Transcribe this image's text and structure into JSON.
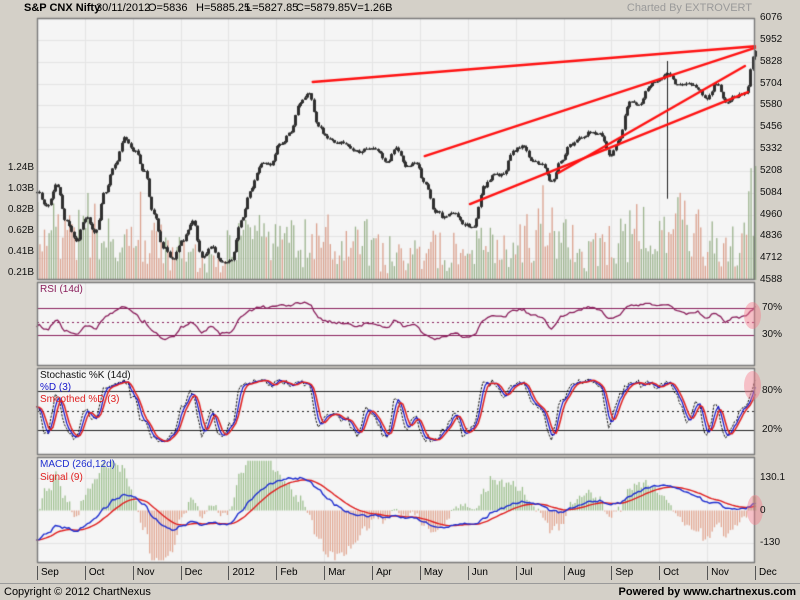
{
  "header": {
    "title": "S&P CNX Nifty",
    "date": "30/11/2012",
    "open": "O=5836",
    "high": "H=5885.25",
    "low": "L=5827.85",
    "close": "C=5879.85",
    "volume": "V=1.26B",
    "charted_by": "Charted By EXTROVERT"
  },
  "footer": {
    "copyright": "Copyright © 2012 ChartNexus",
    "powered_by": "Powered by www.chartnexus.com"
  },
  "colors": {
    "chrome": "#d4d0c8",
    "panel_bg": "#f5f5f5",
    "panel_border": "#7a7a7a",
    "grid": "#e4e4e4",
    "candle": "#2f2f2f",
    "volume_up": "#9db48f",
    "volume_down": "#dba28f",
    "trendline": "#ff1212",
    "rsi_line": "#8a1f5c",
    "stoch_k": "#111111",
    "stoch_d": "#1414cc",
    "stoch_sd": "#e02020",
    "macd_line": "#1f2fd0",
    "signal_line": "#e02020",
    "hist_pos": "#a0c292",
    "hist_neg": "#e2a893",
    "highlight": "#f77887"
  },
  "chart_data": [
    {
      "type": "candlestick+volume",
      "title": "S&P CNX Nifty",
      "x_labels": [
        "Sep",
        "Oct",
        "Nov",
        "Dec",
        "2012",
        "Feb",
        "Mar",
        "Apr",
        "May",
        "Jun",
        "Jul",
        "Aug",
        "Sep",
        "Oct",
        "Nov",
        "Dec"
      ],
      "y_axis_labels": [
        "6076",
        "5952",
        "5828",
        "5704",
        "5580",
        "5456",
        "5332",
        "5208",
        "5084",
        "4960",
        "4836",
        "4712",
        "4588"
      ],
      "y_range": [
        4516,
        6076
      ],
      "volume_axis_labels": [
        "1.24B",
        "1.03B",
        "0.82B",
        "0.62B",
        "0.41B",
        "0.21B"
      ],
      "last_bar": {
        "o": 5836,
        "h": 5885.25,
        "l": 5827.85,
        "c": 5879.85,
        "v": 1.26
      },
      "weekly_closes": [
        5040,
        4950,
        5084,
        4868,
        4750,
        4888,
        4800,
        5050,
        5201,
        5360,
        5284,
        5168,
        4906,
        4710,
        4640,
        4756,
        4866,
        4651,
        4714,
        4624,
        4636,
        4866,
        5048,
        5205,
        5199,
        5325,
        5382,
        5564,
        5630,
        5429,
        5359,
        5334,
        5318,
        5278,
        5296,
        5290,
        5207,
        5301,
        5191,
        5209,
        5086,
        4928,
        4891,
        4920,
        4842,
        4841,
        5068,
        5139,
        5146,
        5279,
        5316,
        5227,
        5205,
        5100,
        5229,
        5320,
        5366,
        5392,
        5387,
        5258,
        5342,
        5578,
        5554,
        5669,
        5703,
        5746,
        5676,
        5684,
        5664,
        5597,
        5686,
        5574,
        5605,
        5626,
        5879
      ],
      "weekly_volume_b": [
        0.62,
        0.55,
        0.7,
        0.66,
        0.58,
        0.72,
        0.6,
        0.55,
        0.5,
        0.48,
        0.85,
        0.6,
        0.52,
        0.48,
        0.45,
        0.42,
        0.38,
        0.35,
        0.4,
        0.36,
        0.48,
        0.55,
        0.6,
        0.52,
        0.5,
        0.55,
        0.5,
        0.48,
        0.52,
        0.46,
        0.6,
        0.52,
        0.48,
        0.45,
        0.5,
        0.42,
        0.4,
        0.38,
        0.36,
        0.4,
        0.45,
        0.42,
        0.4,
        0.44,
        0.38,
        0.55,
        0.48,
        0.45,
        0.42,
        0.46,
        0.52,
        0.6,
        0.72,
        0.68,
        0.55,
        0.48,
        0.44,
        0.42,
        0.4,
        0.45,
        0.52,
        0.58,
        0.62,
        0.55,
        0.6,
        0.7,
        0.85,
        0.62,
        0.58,
        0.52,
        0.55,
        0.48,
        0.52,
        0.6,
        1.1
      ],
      "trendlines": [
        {
          "x1": 0.384,
          "price1": 5695,
          "x2": 1.0,
          "price2": 5908
        },
        {
          "x1": 0.54,
          "price1": 5254,
          "x2": 1.0,
          "price2": 5898
        },
        {
          "x1": 0.603,
          "price1": 4968,
          "x2": 0.99,
          "price2": 5635
        },
        {
          "x1": 0.726,
          "price1": 5153,
          "x2": 0.986,
          "price2": 5790
        }
      ],
      "vertical_marker": {
        "x": 0.877,
        "from": 5820,
        "to": 5000
      }
    },
    {
      "type": "line",
      "name": "RSI (14d)",
      "axis_labels": [
        "70%",
        "30%"
      ],
      "overbought": 70,
      "oversold": 30,
      "midline": 50,
      "y_range": [
        0,
        100
      ],
      "weekly_values": [
        45,
        38,
        52,
        36,
        30,
        44,
        40,
        56,
        64,
        72,
        62,
        50,
        34,
        24,
        26,
        42,
        50,
        34,
        42,
        32,
        34,
        56,
        66,
        72,
        70,
        74,
        73,
        78,
        76,
        56,
        50,
        48,
        47,
        42,
        48,
        46,
        40,
        52,
        42,
        45,
        30,
        24,
        27,
        33,
        27,
        29,
        52,
        58,
        56,
        66,
        68,
        60,
        56,
        40,
        56,
        64,
        68,
        70,
        67,
        54,
        60,
        72,
        74,
        76,
        73,
        75,
        66,
        62,
        64,
        56,
        62,
        50,
        56,
        58,
        70
      ]
    },
    {
      "type": "line-multi",
      "legend": [
        {
          "label": "Stochastic %K (14d)",
          "color": "#111111"
        },
        {
          "label": "%D (3)",
          "color": "#1414cc"
        },
        {
          "label": "Smoothed %D (3)",
          "color": "#e02020"
        }
      ],
      "axis_labels": [
        "80%",
        "20%"
      ],
      "upper": 80,
      "lower": 20,
      "midline": 50,
      "y_range": [
        0,
        100
      ],
      "weekly_k_values": [
        55,
        15,
        75,
        20,
        8,
        50,
        35,
        85,
        92,
        95,
        70,
        30,
        6,
        4,
        12,
        55,
        75,
        15,
        45,
        10,
        30,
        85,
        95,
        96,
        88,
        94,
        90,
        96,
        90,
        30,
        45,
        40,
        35,
        12,
        50,
        35,
        8,
        70,
        20,
        40,
        6,
        4,
        18,
        45,
        10,
        30,
        88,
        92,
        75,
        92,
        94,
        65,
        50,
        10,
        65,
        88,
        92,
        94,
        85,
        30,
        70,
        94,
        92,
        95,
        88,
        92,
        70,
        35,
        60,
        15,
        60,
        10,
        40,
        55,
        95
      ]
    },
    {
      "type": "macd",
      "legend": [
        {
          "label": "MACD (26d,12d)",
          "color": "#1f2fd0"
        },
        {
          "label": "Signal (9)",
          "color": "#e02020"
        }
      ],
      "axis_labels": [
        "130.1",
        "0",
        "-130"
      ],
      "y_range": [
        -215,
        215
      ],
      "weekly_values": [
        -118,
        -95,
        -60,
        -70,
        -85,
        -60,
        -30,
        10,
        45,
        62,
        55,
        25,
        -25,
        -60,
        -78,
        -60,
        -42,
        -55,
        -48,
        -58,
        -50,
        -5,
        40,
        80,
        105,
        122,
        128,
        130.1,
        120,
        85,
        45,
        15,
        -5,
        -18,
        -22,
        -20,
        -28,
        -22,
        -30,
        -28,
        -48,
        -65,
        -70,
        -58,
        -52,
        -55,
        -35,
        -8,
        10,
        25,
        35,
        30,
        22,
        0,
        -8,
        10,
        25,
        35,
        38,
        25,
        30,
        55,
        75,
        92,
        100,
        102,
        88,
        70,
        55,
        35,
        30,
        12,
        5,
        10,
        28
      ]
    }
  ]
}
